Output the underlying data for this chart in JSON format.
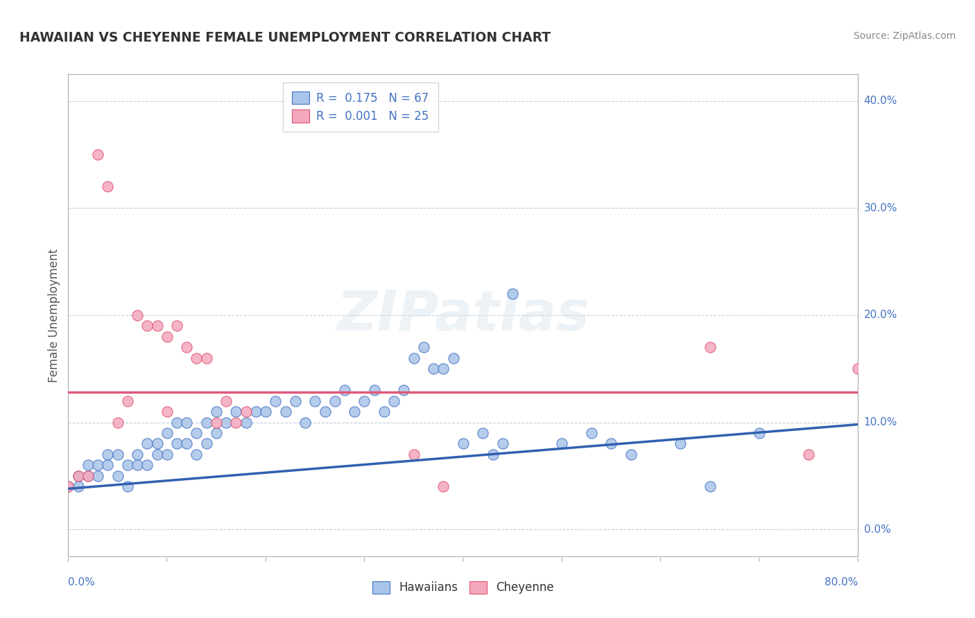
{
  "title": "HAWAIIAN VS CHEYENNE FEMALE UNEMPLOYMENT CORRELATION CHART",
  "source": "Source: ZipAtlas.com",
  "ylabel": "Female Unemployment",
  "ytick_vals": [
    0.0,
    0.1,
    0.2,
    0.3,
    0.4
  ],
  "ytick_labels": [
    "0.0%",
    "10.0%",
    "20.0%",
    "30.0%",
    "40.0%"
  ],
  "xtick_labels_left": "0.0%",
  "xtick_labels_right": "80.0%",
  "xrange": [
    0.0,
    0.8
  ],
  "yrange": [
    -0.025,
    0.425
  ],
  "hawaiian_fill": "#a8c4e8",
  "hawaiian_edge": "#4472c4",
  "cheyenne_fill": "#f4a8be",
  "cheyenne_edge": "#e05070",
  "hawaiian_trend_color": "#3060b0",
  "cheyenne_trend_color": "#e05878",
  "legend_text_color": "#4472c4",
  "grid_color": "#b8c8d8",
  "background": "#ffffff",
  "watermark": "ZIPatlas",
  "hawaiian_R": "0.175",
  "hawaiian_N": "67",
  "cheyenne_R": "0.001",
  "cheyenne_N": "25",
  "hawaiian_trend_y0": 0.038,
  "hawaiian_trend_y1": 0.098,
  "cheyenne_trend_y": 0.128,
  "hawaiian_x": [
    0.0,
    0.01,
    0.01,
    0.02,
    0.02,
    0.03,
    0.03,
    0.04,
    0.04,
    0.05,
    0.05,
    0.06,
    0.06,
    0.07,
    0.07,
    0.08,
    0.08,
    0.09,
    0.09,
    0.1,
    0.1,
    0.11,
    0.11,
    0.12,
    0.12,
    0.13,
    0.13,
    0.14,
    0.14,
    0.15,
    0.15,
    0.16,
    0.17,
    0.18,
    0.19,
    0.2,
    0.21,
    0.22,
    0.23,
    0.24,
    0.25,
    0.26,
    0.27,
    0.28,
    0.29,
    0.3,
    0.31,
    0.32,
    0.33,
    0.34,
    0.35,
    0.36,
    0.37,
    0.38,
    0.39,
    0.4,
    0.42,
    0.43,
    0.44,
    0.45,
    0.5,
    0.53,
    0.55,
    0.57,
    0.62,
    0.65,
    0.7
  ],
  "hawaiian_y": [
    0.04,
    0.05,
    0.04,
    0.06,
    0.05,
    0.06,
    0.05,
    0.07,
    0.06,
    0.07,
    0.05,
    0.06,
    0.04,
    0.07,
    0.06,
    0.08,
    0.06,
    0.08,
    0.07,
    0.09,
    0.07,
    0.1,
    0.08,
    0.1,
    0.08,
    0.09,
    0.07,
    0.1,
    0.08,
    0.11,
    0.09,
    0.1,
    0.11,
    0.1,
    0.11,
    0.11,
    0.12,
    0.11,
    0.12,
    0.1,
    0.12,
    0.11,
    0.12,
    0.13,
    0.11,
    0.12,
    0.13,
    0.11,
    0.12,
    0.13,
    0.16,
    0.17,
    0.15,
    0.15,
    0.16,
    0.08,
    0.09,
    0.07,
    0.08,
    0.22,
    0.08,
    0.09,
    0.08,
    0.07,
    0.08,
    0.04,
    0.09
  ],
  "cheyenne_x": [
    0.0,
    0.01,
    0.02,
    0.03,
    0.04,
    0.05,
    0.06,
    0.07,
    0.08,
    0.09,
    0.1,
    0.1,
    0.11,
    0.12,
    0.13,
    0.14,
    0.15,
    0.16,
    0.17,
    0.18,
    0.35,
    0.38,
    0.65,
    0.75,
    0.8
  ],
  "cheyenne_y": [
    0.04,
    0.05,
    0.05,
    0.35,
    0.32,
    0.1,
    0.12,
    0.2,
    0.19,
    0.19,
    0.18,
    0.11,
    0.19,
    0.17,
    0.16,
    0.16,
    0.1,
    0.12,
    0.1,
    0.11,
    0.07,
    0.04,
    0.17,
    0.07,
    0.15
  ]
}
